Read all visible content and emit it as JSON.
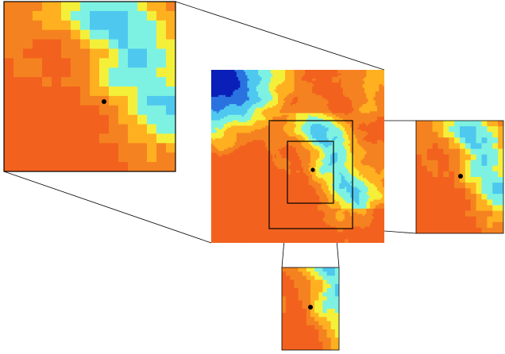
{
  "figure": {
    "description_visible_text": "",
    "colormap": [
      "#0a1fb8",
      "#2a72e0",
      "#4fc8f0",
      "#7ef2e2",
      "#f4f03a",
      "#ffb020",
      "#f58220",
      "#f2621e"
    ],
    "center_marker_color": "#000000",
    "panels": [
      {
        "id": "main",
        "label": ""
      },
      {
        "id": "zoom-top-left",
        "label": ""
      },
      {
        "id": "zoom-right",
        "label": ""
      },
      {
        "id": "zoom-bottom",
        "label": ""
      }
    ]
  }
}
